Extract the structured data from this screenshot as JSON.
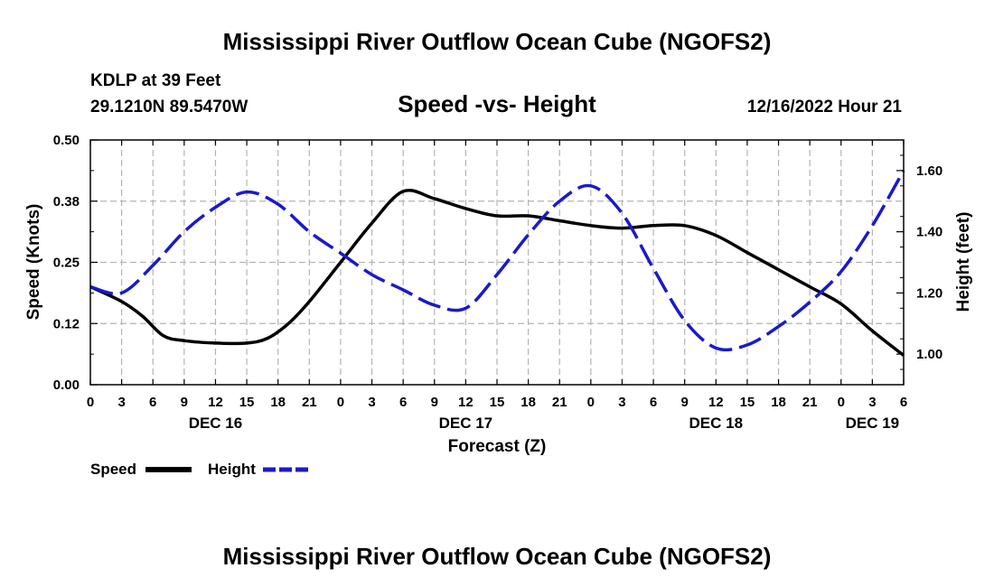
{
  "header": {
    "title": "Mississippi River Outflow Ocean Cube (NGOFS2)",
    "station": "KDLP at 39 Feet",
    "coords": "29.1210N  89.5470W",
    "datetime": "12/16/2022 Hour 21"
  },
  "footer": {
    "title": "Mississippi River Outflow Ocean Cube (NGOFS2)"
  },
  "chart_data": {
    "type": "line",
    "title": "Speed -vs- Height",
    "xlabel": "Forecast (Z)",
    "ylabel_left": "Speed (Knots)",
    "ylabel_right": "Height (feet)",
    "x_ticks": [
      "0",
      "3",
      "6",
      "9",
      "12",
      "15",
      "18",
      "21",
      "0",
      "3",
      "6",
      "9",
      "12",
      "15",
      "18",
      "21",
      "0",
      "3",
      "6",
      "9",
      "12",
      "15",
      "18",
      "21",
      "0",
      "3",
      "6"
    ],
    "day_labels": [
      {
        "label": "DEC 16",
        "at_hour": 12
      },
      {
        "label": "DEC 17",
        "at_hour": 36
      },
      {
        "label": "DEC 18",
        "at_hour": 60
      },
      {
        "label": "DEC 19",
        "at_hour": 75
      }
    ],
    "x_range_hours": [
      0,
      78
    ],
    "y_left": {
      "range": [
        0,
        0.5
      ],
      "ticks": [
        0.0,
        0.125,
        0.25,
        0.375,
        0.5
      ],
      "tick_labels": [
        "0.00",
        "0.12",
        "0.25",
        "0.38",
        "0.50"
      ]
    },
    "y_right": {
      "range": [
        0.9,
        1.7
      ],
      "ticks": [
        1.0,
        1.2,
        1.4,
        1.6
      ],
      "tick_labels": [
        "1.00",
        "1.20",
        "1.40",
        "1.60"
      ]
    },
    "grid": true,
    "series": [
      {
        "name": "Speed",
        "axis": "left",
        "color": "#000000",
        "dash": "solid",
        "x": [
          0,
          3,
          5,
          7,
          9,
          12,
          15,
          17,
          19,
          21,
          24,
          27,
          30,
          33,
          36,
          39,
          42,
          45,
          48,
          51,
          54,
          57,
          60,
          63,
          66,
          69,
          72,
          75,
          78
        ],
        "y": [
          0.2,
          0.17,
          0.14,
          0.1,
          0.09,
          0.085,
          0.085,
          0.095,
          0.125,
          0.17,
          0.25,
          0.33,
          0.395,
          0.38,
          0.36,
          0.345,
          0.345,
          0.335,
          0.325,
          0.32,
          0.325,
          0.325,
          0.305,
          0.27,
          0.235,
          0.2,
          0.165,
          0.11,
          0.06
        ]
      },
      {
        "name": "Height",
        "axis": "right",
        "color": "#1a1acc",
        "dash": "dashed",
        "x": [
          0,
          3,
          6,
          9,
          12,
          15,
          18,
          21,
          24,
          27,
          30,
          33,
          36,
          39,
          42,
          45,
          48,
          51,
          54,
          57,
          60,
          63,
          66,
          69,
          72,
          75,
          78
        ],
        "y": [
          1.22,
          1.2,
          1.29,
          1.4,
          1.48,
          1.53,
          1.49,
          1.4,
          1.33,
          1.26,
          1.21,
          1.16,
          1.15,
          1.26,
          1.39,
          1.5,
          1.55,
          1.46,
          1.28,
          1.11,
          1.02,
          1.03,
          1.09,
          1.17,
          1.27,
          1.42,
          1.6
        ]
      }
    ],
    "legend": [
      {
        "label": "Speed",
        "color": "#000000",
        "dash": "solid"
      },
      {
        "label": "Height",
        "color": "#1a1acc",
        "dash": "dashed"
      }
    ],
    "legend_placement": "bottom-left"
  }
}
